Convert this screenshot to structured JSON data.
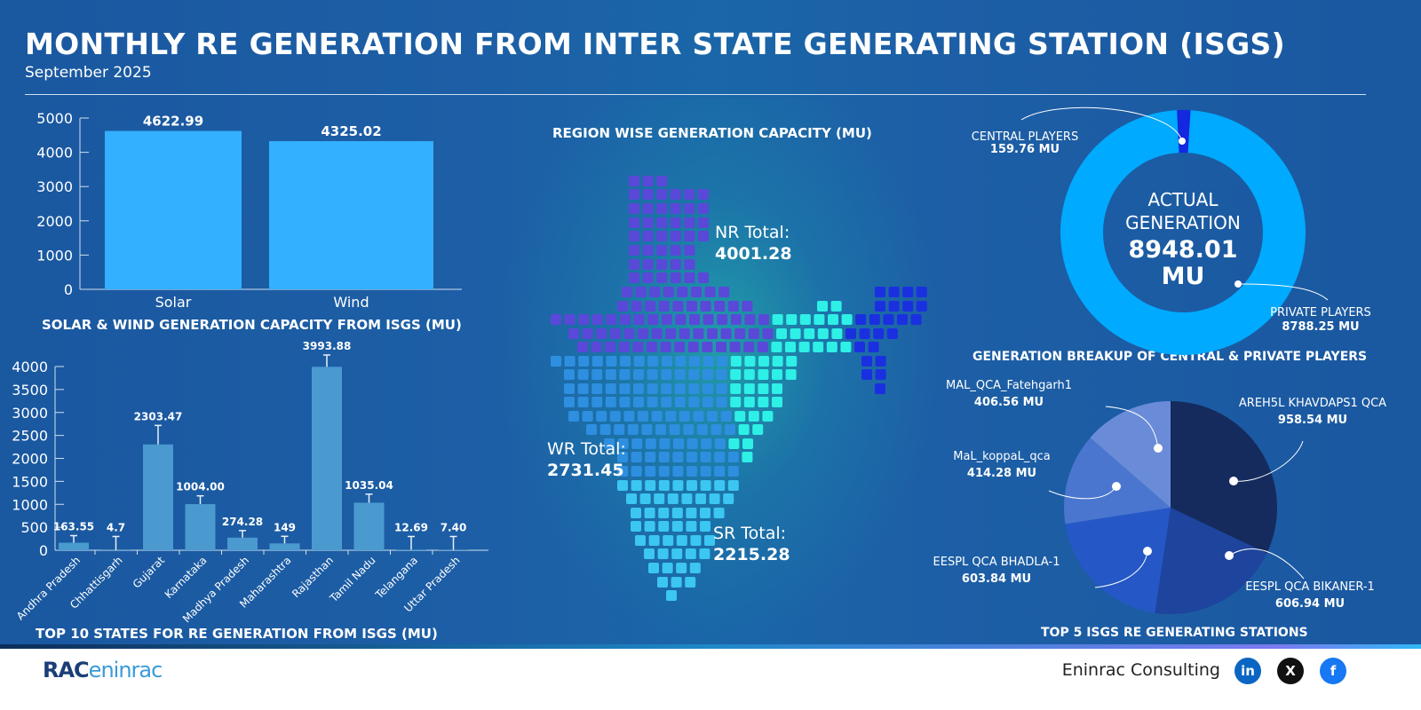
{
  "header": {
    "title": "MONTHLY RE GENERATION FROM INTER STATE GENERATING STATION (ISGS)",
    "subtitle": "September 2025"
  },
  "chart_data": [
    {
      "type": "bar",
      "title": "SOLAR & WIND GENERATION CAPACITY FROM ISGS (MU)",
      "categories": [
        "Solar",
        "Wind"
      ],
      "values": [
        4622.99,
        4325.02
      ],
      "value_labels": [
        "4622.99",
        "4325.02"
      ],
      "ylim": [
        0,
        5000
      ],
      "yticks": [
        0,
        1000,
        2000,
        3000,
        4000,
        5000
      ],
      "color": "#33b0ff"
    },
    {
      "type": "bar",
      "title": "TOP 10 STATES FOR RE GENERATION FROM ISGS (MU)",
      "categories": [
        "Andhra Pradesh",
        "Chhattisgarh",
        "Gujarat",
        "Karnataka",
        "Madhya Pradesh",
        "Maharashtra",
        "Rajasthan",
        "Tamil Nadu",
        "Telangana",
        "Uttar Pradesh"
      ],
      "values": [
        163.55,
        4.7,
        2303.47,
        1004.0,
        274.28,
        149,
        3993.88,
        1035.04,
        12.69,
        7.4
      ],
      "value_labels": [
        "163.55",
        "4.7",
        "2303.47",
        "1004.00",
        "274.28",
        "149",
        "3993.88",
        "1035.04",
        "12.69",
        "7.40"
      ],
      "ylim": [
        0,
        4000
      ],
      "yticks": [
        0,
        500,
        1000,
        1500,
        2000,
        2500,
        3000,
        3500,
        4000
      ],
      "error_bars": true,
      "color": "#4a9ad0"
    },
    {
      "type": "map",
      "title": "REGION WISE GENERATION CAPACITY (MU)",
      "regions": [
        {
          "label": "NR Total:",
          "value": "4001.28",
          "color": "#5a48d8"
        },
        {
          "label": "WR Total:",
          "value": "2731.45",
          "color": "#2e8fe0"
        },
        {
          "label": "SR Total:",
          "value": "2215.28",
          "color": "#3cc6f2"
        },
        {
          "color": "#2ef0e6"
        },
        {
          "color": "#1a30e0"
        }
      ]
    },
    {
      "type": "pie",
      "donut": true,
      "title": "GENERATION BREAKUP OF CENTRAL & PRIVATE PLAYERS",
      "center_label": [
        "ACTUAL",
        "GENERATION"
      ],
      "center_value": "8948.01",
      "center_unit": "MU",
      "slices": [
        {
          "name": "CENTRAL PLAYERS",
          "value": 159.76,
          "label": "159.76 MU",
          "color": "#1428e0"
        },
        {
          "name": "PRIVATE PLAYERS",
          "value": 8788.25,
          "label": "8788.25 MU",
          "color": "#00aaff"
        }
      ]
    },
    {
      "type": "pie",
      "title": "TOP 5 ISGS RE GENERATING STATIONS",
      "slices": [
        {
          "name": "AREH5L KHAVDAPS1 QCA",
          "value": 958.54,
          "label": "958.54  MU",
          "color": "#152b5e"
        },
        {
          "name": "EESPL QCA BIKANER-1",
          "value": 606.94,
          "label": "606.94 MU",
          "color": "#1e449e"
        },
        {
          "name": "EESPL QCA BHADLA-1",
          "value": 603.84,
          "label": "603.84 MU",
          "color": "#2558c6"
        },
        {
          "name": "MaL_koppaL_qca",
          "value": 414.28,
          "label": "414.28 MU",
          "color": "#4a76d0"
        },
        {
          "name": "MAL_QCA_Fatehgarh1",
          "value": 406.56,
          "label": "406.56 MU",
          "color": "#6a8cd8"
        }
      ]
    }
  ],
  "footer": {
    "logo": "RAC eninrac",
    "company": "Eninrac Consulting",
    "social": [
      {
        "icon": "linkedin-icon",
        "label": "in",
        "color": "#0a66c2"
      },
      {
        "icon": "x-icon",
        "label": "X",
        "color": "#111111"
      },
      {
        "icon": "facebook-icon",
        "label": "f",
        "color": "#1877f2"
      }
    ]
  }
}
